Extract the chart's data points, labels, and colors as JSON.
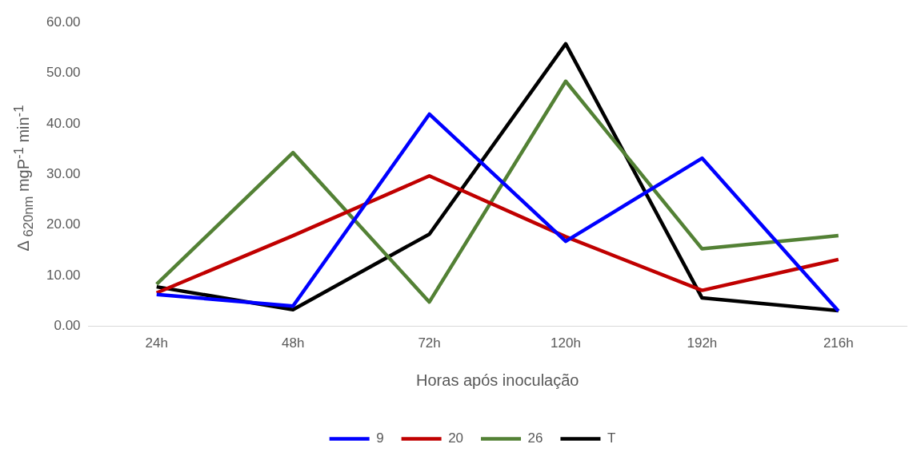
{
  "chart_data": {
    "type": "line",
    "xlabel": "Horas após inoculação",
    "ylabel": "Δ $_{620nm}$ mgP$^{-1}$ min$^{-1}$",
    "categories": [
      "24h",
      "48h",
      "72h",
      "120h",
      "192h",
      "216h"
    ],
    "series": [
      {
        "name": "9",
        "color": "#0000ff",
        "values": [
          6.3,
          4.0,
          41.9,
          16.8,
          33.2,
          3.0
        ]
      },
      {
        "name": "20",
        "color": "#c00000",
        "values": [
          6.6,
          17.9,
          29.7,
          17.7,
          7.1,
          13.2
        ]
      },
      {
        "name": "26",
        "color": "#538135",
        "values": [
          8.3,
          34.3,
          4.8,
          48.4,
          15.3,
          17.9
        ]
      },
      {
        "name": "T",
        "color": "#000000",
        "values": [
          7.8,
          3.3,
          18.2,
          55.8,
          5.6,
          3.1
        ]
      }
    ],
    "ylim": [
      0,
      60
    ],
    "yticks": [
      {
        "value": 0,
        "label": "0.00"
      },
      {
        "value": 10,
        "label": "10.00"
      },
      {
        "value": 20,
        "label": "20.00"
      },
      {
        "value": 30,
        "label": "30.00"
      },
      {
        "value": 40,
        "label": "40.00"
      },
      {
        "value": 50,
        "label": "50.00"
      },
      {
        "value": 60,
        "label": "60.00"
      }
    ],
    "grid": false,
    "legend": "bottom",
    "marker": "none",
    "line_style": "solid"
  }
}
